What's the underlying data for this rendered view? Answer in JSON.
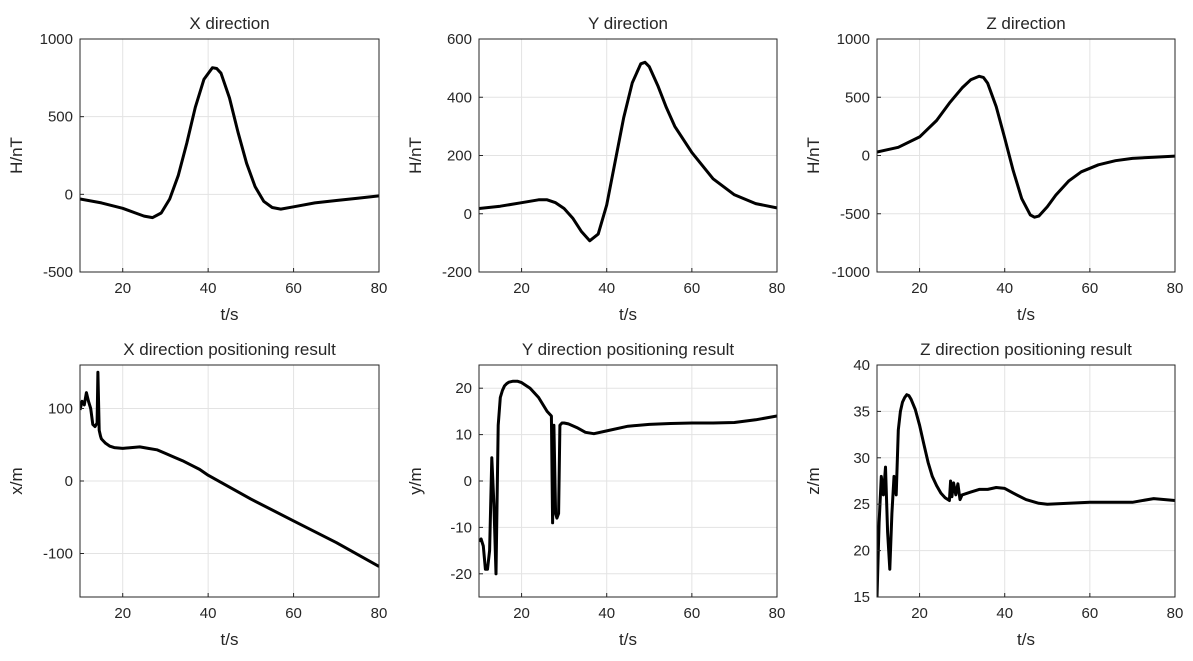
{
  "figure": {
    "colors": {
      "line": "#000000",
      "grid": "#e3e3e3",
      "axis": "#262626",
      "background": "#ffffff"
    }
  },
  "chart_data": [
    {
      "type": "line",
      "title": "X direction",
      "xlabel": "t/s",
      "ylabel": "H/nT",
      "xlim": [
        10,
        80
      ],
      "ylim": [
        -500,
        1000
      ],
      "xticks": [
        20,
        40,
        60,
        80
      ],
      "yticks": [
        -500,
        0,
        500,
        1000
      ],
      "grid": true,
      "series": [
        {
          "name": "X direction",
          "x": [
            10,
            15,
            20,
            23,
            25,
            27,
            29,
            31,
            33,
            35,
            37,
            39,
            41,
            42,
            43,
            45,
            47,
            49,
            51,
            53,
            55,
            57,
            60,
            65,
            70,
            75,
            80
          ],
          "y": [
            -30,
            -55,
            -90,
            -120,
            -140,
            -150,
            -120,
            -30,
            120,
            330,
            560,
            740,
            815,
            810,
            780,
            620,
            400,
            200,
            50,
            -45,
            -85,
            -95,
            -80,
            -55,
            -40,
            -25,
            -10
          ]
        }
      ]
    },
    {
      "type": "line",
      "title": "Y direction",
      "xlabel": "t/s",
      "ylabel": "H/nT",
      "xlim": [
        10,
        80
      ],
      "ylim": [
        -200,
        600
      ],
      "xticks": [
        20,
        40,
        60,
        80
      ],
      "yticks": [
        -200,
        0,
        200,
        400,
        600
      ],
      "grid": true,
      "series": [
        {
          "name": "Y direction",
          "x": [
            10,
            15,
            20,
            24,
            26,
            28,
            30,
            32,
            34,
            36,
            38,
            40,
            42,
            44,
            46,
            48,
            49,
            50,
            52,
            54,
            56,
            60,
            65,
            70,
            75,
            80
          ],
          "y": [
            18,
            26,
            38,
            48,
            48,
            38,
            18,
            -15,
            -60,
            -93,
            -70,
            30,
            180,
            330,
            450,
            515,
            520,
            505,
            440,
            365,
            300,
            210,
            120,
            65,
            35,
            20
          ]
        }
      ]
    },
    {
      "type": "line",
      "title": "Z direction",
      "xlabel": "t/s",
      "ylabel": "H/nT",
      "xlim": [
        10,
        80
      ],
      "ylim": [
        -1000,
        1000
      ],
      "xticks": [
        20,
        40,
        60,
        80
      ],
      "yticks": [
        -1000,
        -500,
        0,
        500,
        1000
      ],
      "grid": true,
      "series": [
        {
          "name": "Z direction",
          "x": [
            10,
            15,
            20,
            24,
            27,
            30,
            32,
            34,
            35,
            36,
            38,
            40,
            42,
            44,
            46,
            47,
            48,
            50,
            52,
            55,
            58,
            62,
            66,
            70,
            75,
            80
          ],
          "y": [
            30,
            70,
            160,
            300,
            450,
            580,
            650,
            680,
            670,
            620,
            420,
            150,
            -130,
            -370,
            -510,
            -530,
            -520,
            -440,
            -340,
            -220,
            -140,
            -80,
            -45,
            -25,
            -15,
            -5
          ]
        }
      ]
    },
    {
      "type": "line",
      "title": "X direction positioning result",
      "xlabel": "t/s",
      "ylabel": "x/m",
      "xlim": [
        10,
        80
      ],
      "ylim": [
        -160,
        160
      ],
      "xticks": [
        20,
        40,
        60,
        80
      ],
      "yticks": [
        -100,
        0,
        100
      ],
      "grid": true,
      "series": [
        {
          "name": "x",
          "x": [
            10,
            10.5,
            11,
            11.5,
            12,
            12.5,
            13,
            13.5,
            14,
            14.2,
            14.5,
            14.8,
            15,
            15.5,
            16,
            17,
            18,
            20,
            22,
            24,
            26,
            28,
            30,
            32,
            34,
            36,
            38,
            40,
            50,
            60,
            70,
            80
          ],
          "y": [
            98,
            110,
            105,
            122,
            110,
            100,
            78,
            75,
            80,
            150,
            70,
            62,
            58,
            55,
            52,
            48,
            46,
            45,
            46,
            47,
            45,
            43,
            38,
            33,
            28,
            22,
            16,
            8,
            -25,
            -55,
            -85,
            -118
          ]
        }
      ]
    },
    {
      "type": "line",
      "title": "Y direction positioning result",
      "xlabel": "t/s",
      "ylabel": "y/m",
      "xlim": [
        10,
        80
      ],
      "ylim": [
        -25,
        25
      ],
      "xticks": [
        20,
        40,
        60,
        80
      ],
      "yticks": [
        -20,
        -10,
        0,
        10,
        20
      ],
      "grid": true,
      "series": [
        {
          "name": "y",
          "x": [
            10,
            10.5,
            11,
            11.5,
            12,
            12.5,
            13,
            13.5,
            14,
            14.5,
            15,
            15.5,
            16,
            16.5,
            17,
            18,
            19,
            20,
            22,
            24,
            26,
            27,
            27.3,
            27.6,
            28,
            28.3,
            28.7,
            29,
            29.5,
            30,
            31,
            33,
            35,
            37,
            40,
            45,
            50,
            55,
            60,
            65,
            70,
            75,
            80
          ],
          "y": [
            -13,
            -12.5,
            -14,
            -19,
            -19,
            -15,
            5,
            -5,
            -20,
            12,
            18,
            19.5,
            20.5,
            21,
            21.3,
            21.5,
            21.5,
            21.2,
            20,
            18,
            15,
            14,
            -9,
            12,
            -7,
            -8,
            -7,
            12,
            12.5,
            12.5,
            12.3,
            11.5,
            10.5,
            10.2,
            10.8,
            11.8,
            12.2,
            12.4,
            12.5,
            12.5,
            12.6,
            13.2,
            14
          ]
        }
      ]
    },
    {
      "type": "line",
      "title": "Z direction positioning result",
      "xlabel": "t/s",
      "ylabel": "z/m",
      "xlim": [
        10,
        80
      ],
      "ylim": [
        15,
        40
      ],
      "xticks": [
        20,
        40,
        60,
        80
      ],
      "yticks": [
        15,
        20,
        25,
        30,
        35,
        40
      ],
      "grid": true,
      "series": [
        {
          "name": "z",
          "x": [
            10,
            10.5,
            11,
            11.5,
            12,
            12.5,
            13,
            13.5,
            14,
            14.5,
            15,
            15.5,
            16,
            16.5,
            17,
            17.5,
            18,
            19,
            20,
            21,
            22,
            23,
            24,
            25,
            26,
            27,
            27.3,
            27.6,
            28,
            28.5,
            29,
            29.5,
            30,
            32,
            34,
            36,
            38,
            40,
            42,
            45,
            48,
            50,
            55,
            60,
            65,
            70,
            75,
            80
          ],
          "y": [
            15,
            23,
            28,
            26,
            29,
            22,
            18,
            24,
            28,
            26,
            33,
            35,
            36,
            36.5,
            36.8,
            36.7,
            36.3,
            35.2,
            33.5,
            31.5,
            29.5,
            28,
            27,
            26.2,
            25.7,
            25.4,
            27.5,
            25.8,
            27.3,
            26,
            27.2,
            25.5,
            26,
            26.3,
            26.6,
            26.6,
            26.8,
            26.7,
            26.2,
            25.5,
            25.1,
            25,
            25.1,
            25.2,
            25.2,
            25.2,
            25.6,
            25.4
          ]
        }
      ]
    }
  ]
}
